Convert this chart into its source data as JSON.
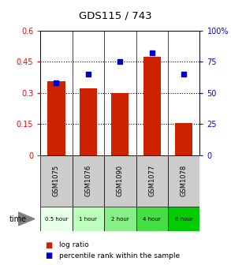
{
  "title": "GDS115 / 743",
  "categories": [
    "GSM1075",
    "GSM1076",
    "GSM1090",
    "GSM1077",
    "GSM1078"
  ],
  "time_labels": [
    "0.5 hour",
    "1 hour",
    "2 hour",
    "4 hour",
    "6 hour"
  ],
  "log_ratio": [
    0.355,
    0.32,
    0.3,
    0.475,
    0.155
  ],
  "percentile": [
    58,
    65,
    75,
    82,
    65
  ],
  "bar_color": "#cc2200",
  "dot_color": "#0000cc",
  "ylim_left": [
    0,
    0.6
  ],
  "ylim_right": [
    0,
    100
  ],
  "yticks_left": [
    0,
    0.15,
    0.3,
    0.45,
    0.6
  ],
  "ytick_labels_left": [
    "0",
    "0.15",
    "0.3",
    "0.45",
    "0.6"
  ],
  "yticks_right": [
    0,
    25,
    50,
    75,
    100
  ],
  "ytick_labels_right": [
    "0",
    "25",
    "50",
    "75",
    "100%"
  ],
  "bg_color": "#ffffff",
  "label_bg": "#cccccc",
  "time_bg_colors": [
    "#e8ffe8",
    "#bbffbb",
    "#88ee88",
    "#44dd44",
    "#00cc00"
  ],
  "time_label_fontsize": 5.5,
  "bar_width": 0.55
}
